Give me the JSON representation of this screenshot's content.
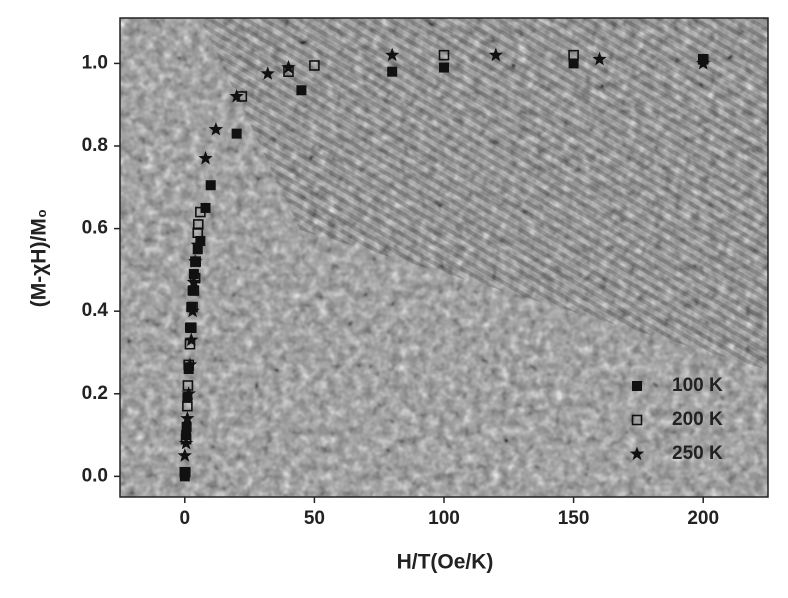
{
  "chart_data": {
    "type": "scatter",
    "xlabel": "H/T(Oe/K)",
    "ylabel": "(M-χH)/M₀",
    "xlim": [
      -25,
      225
    ],
    "ylim": [
      -0.05,
      1.11
    ],
    "xticks": [
      0,
      50,
      100,
      150,
      200
    ],
    "yticks": [
      {
        "value": 0,
        "label": "0.0"
      },
      {
        "value": 0.2,
        "label": "0.2"
      },
      {
        "value": 0.4,
        "label": "0.4"
      },
      {
        "value": 0.6,
        "label": "0.6"
      },
      {
        "value": 0.8,
        "label": "0.8"
      },
      {
        "value": 1.0,
        "label": "1.0"
      }
    ],
    "legend": "lower right",
    "series": [
      {
        "name": "100 K",
        "color": "#111111",
        "marker": "filled-square",
        "x": [
          0,
          0.3,
          0.5,
          0.7,
          1,
          1.5,
          2,
          2.5,
          3,
          3.5,
          4,
          5,
          6,
          8,
          10,
          20,
          45,
          80,
          100,
          150,
          200
        ],
        "values": [
          0.0,
          0.01,
          0.1,
          0.12,
          0.19,
          0.26,
          0.36,
          0.41,
          0.45,
          0.49,
          0.52,
          0.55,
          0.57,
          0.65,
          0.705,
          0.83,
          0.935,
          0.98,
          0.99,
          1.0,
          1.01
        ]
      },
      {
        "name": "200 K",
        "color": "#111111",
        "marker": "open-square",
        "x": [
          0,
          0.5,
          1,
          1.2,
          1.5,
          2,
          2.5,
          3,
          3.5,
          4,
          4.2,
          5,
          5.2,
          6,
          22,
          40,
          50,
          100,
          150,
          200
        ],
        "values": [
          0.01,
          0.09,
          0.17,
          0.22,
          0.27,
          0.32,
          0.36,
          0.41,
          0.45,
          0.48,
          0.52,
          0.59,
          0.61,
          0.64,
          0.92,
          0.98,
          0.995,
          1.02,
          1.02,
          1.01
        ]
      },
      {
        "name": "250 K",
        "color": "#111111",
        "marker": "star",
        "x": [
          0,
          0.5,
          1,
          1.5,
          2,
          2.5,
          3,
          3.5,
          4,
          5,
          8,
          12,
          20,
          32,
          40,
          80,
          120,
          160,
          200
        ],
        "values": [
          0.05,
          0.08,
          0.14,
          0.2,
          0.27,
          0.33,
          0.4,
          0.47,
          0.52,
          0.56,
          0.77,
          0.84,
          0.92,
          0.975,
          0.99,
          1.02,
          1.02,
          1.01,
          1.0
        ]
      }
    ]
  }
}
